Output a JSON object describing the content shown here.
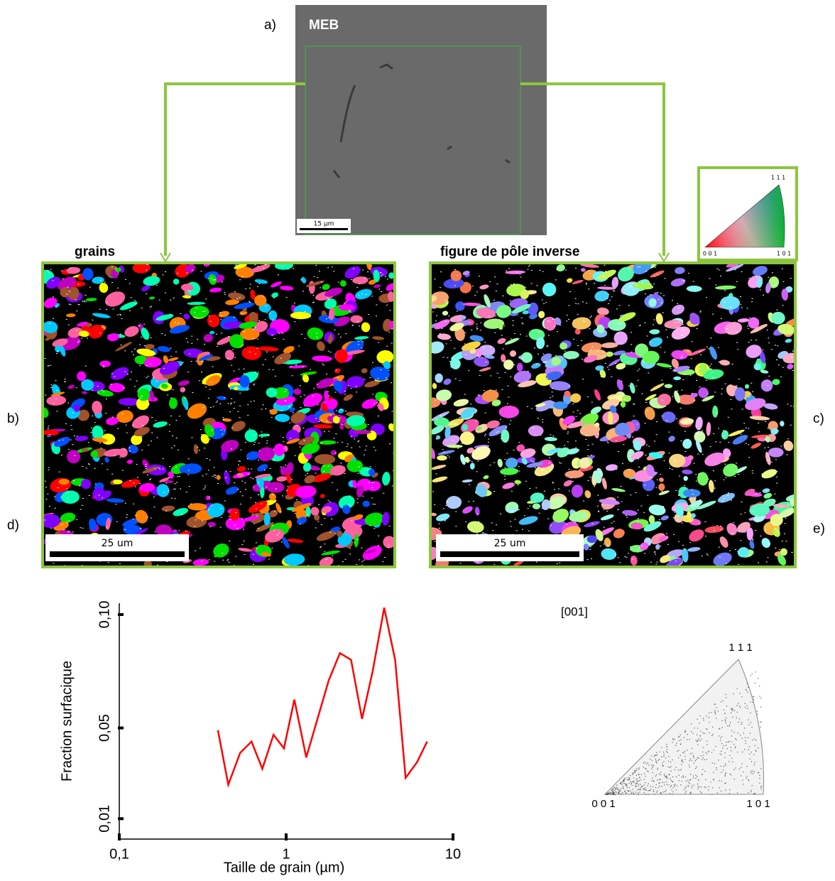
{
  "panels": {
    "a": {
      "label": "a)",
      "title": "MEB",
      "scale_bar": "15 µm"
    },
    "b": {
      "label": "b)",
      "title": "grains",
      "scale_bar": "25 um"
    },
    "c": {
      "label": "c)",
      "title": "figure de pôle inverse",
      "scale_bar": "25 um",
      "key_corners": [
        "1 1 1",
        "0 0 1",
        "1 0 1"
      ]
    },
    "d": {
      "label": "d)"
    },
    "e": {
      "label": "e)",
      "title": "[001]",
      "corners": [
        "1 1 1",
        "0 0 1",
        "1 0 1"
      ]
    }
  },
  "chart_data": {
    "type": "line",
    "x_label": "Taille de grain (µm)",
    "y_label": "Fraction surfacique",
    "x": [
      0.39,
      0.45,
      0.53,
      0.62,
      0.72,
      0.84,
      0.97,
      1.12,
      1.32,
      1.8,
      2.1,
      2.45,
      2.85,
      3.3,
      3.87,
      4.5,
      5.2,
      6.1,
      7.0
    ],
    "series": [
      {
        "color": "#ff0000",
        "values": [
          0.049,
          0.025,
          0.039,
          0.044,
          0.032,
          0.047,
          0.041,
          0.0625,
          0.037,
          0.071,
          0.083,
          0.08,
          0.054,
          0.075,
          0.103,
          0.08,
          0.028,
          0.035,
          0.044
        ]
      }
    ],
    "x_log": true,
    "xlim": [
      0.1,
      10
    ],
    "ylim": [
      0.001,
      0.105
    ],
    "xticks": [
      {
        "value": 0.1,
        "label": "0,1"
      },
      1,
      10
    ],
    "yticks": [
      {
        "value": 0.01,
        "label": "0,01"
      },
      {
        "value": 0.05,
        "label": "0,05"
      },
      {
        "value": 0.1,
        "label": "0,10"
      }
    ]
  }
}
